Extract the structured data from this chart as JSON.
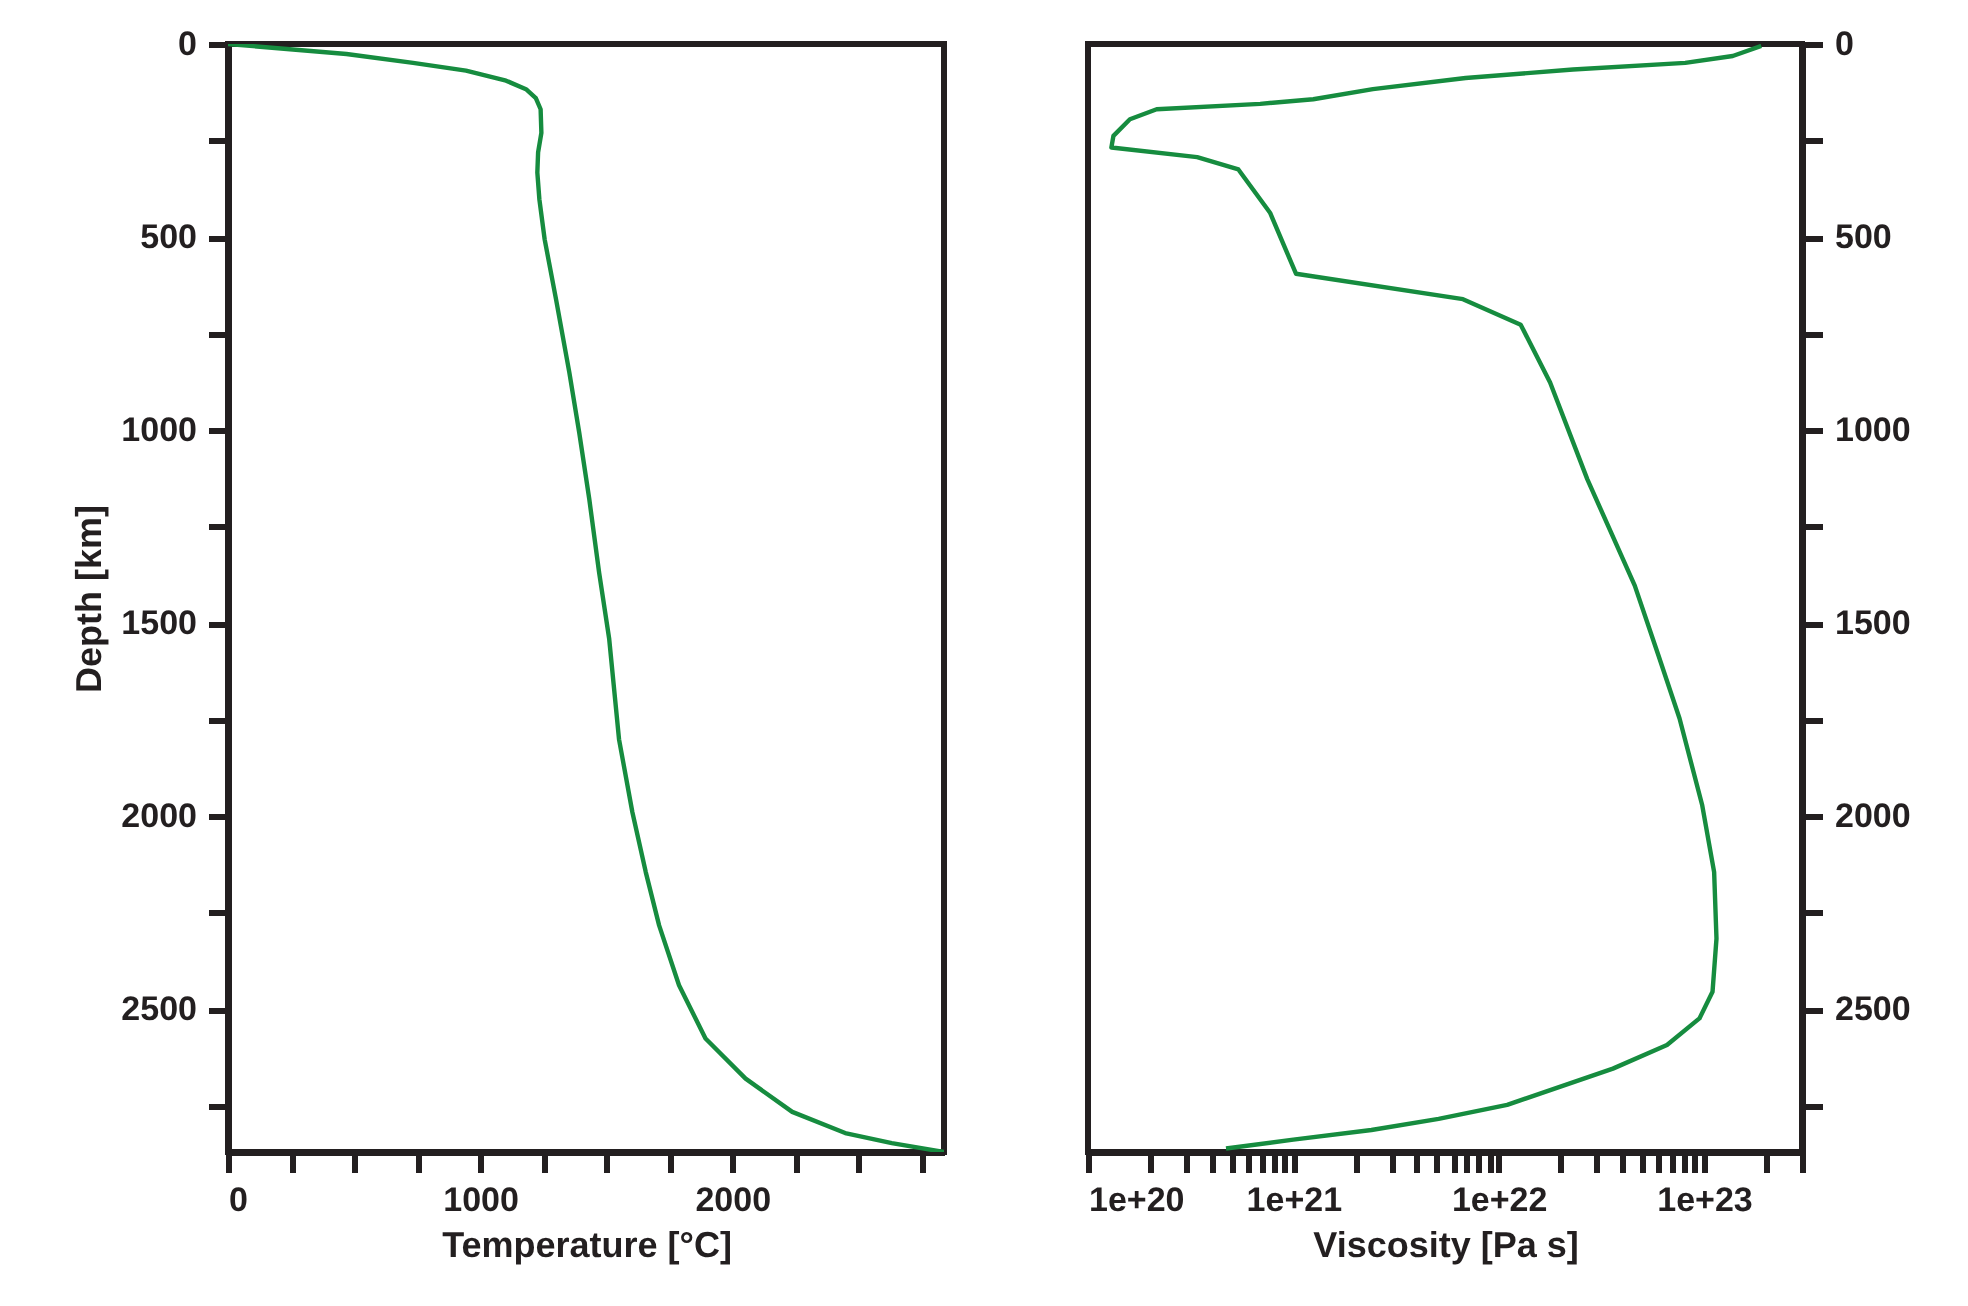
{
  "chart_data": [
    {
      "type": "line",
      "xlabel": "Temperature [°C]",
      "ylabel": "Depth [km]",
      "xlim": [
        0,
        2840
      ],
      "ylim": [
        2870,
        0
      ],
      "xticks": [
        0,
        {
          "value": 250,
          "label": null
        },
        {
          "value": 500,
          "label": null
        },
        {
          "value": 750,
          "label": null
        },
        1000,
        {
          "value": 1250,
          "label": null
        },
        {
          "value": 1500,
          "label": null
        },
        {
          "value": 1750,
          "label": null
        },
        2000,
        {
          "value": 2250,
          "label": null
        },
        {
          "value": 2500,
          "label": null
        },
        {
          "value": 2750,
          "label": null
        }
      ],
      "yticks": [
        0,
        {
          "value": 250,
          "label": null
        },
        500,
        {
          "value": 750,
          "label": null
        },
        1000,
        {
          "value": 1250,
          "label": null
        },
        1500,
        {
          "value": 1750,
          "label": null
        },
        2000,
        {
          "value": 2250,
          "label": null
        },
        2500,
        {
          "value": 2750,
          "label": null
        }
      ],
      "grid": false,
      "marker": "none",
      "line_style": "solid",
      "series": [
        {
          "color": "#168c3f",
          "x": [
            0,
            470,
            734,
            944,
            1103,
            1182,
            1221,
            1240,
            1243,
            1230,
            1227,
            1235,
            1256,
            1301,
            1354,
            1393,
            1433,
            1472,
            1512,
            1551,
            1604,
            1657,
            1710,
            1789,
            1894,
            2053,
            2238,
            2448,
            2633,
            2840
          ],
          "values": [
            0,
            26,
            49,
            69,
            95,
            117,
            140,
            169,
            230,
            281,
            333,
            402,
            506,
            661,
            851,
            1006,
            1179,
            1369,
            1541,
            1801,
            1990,
            2145,
            2283,
            2438,
            2576,
            2680,
            2766,
            2821,
            2847,
            2870
          ]
        }
      ]
    },
    {
      "type": "line",
      "xlabel": "Viscosity [Pa s]",
      "xlim": [
        1e+20,
        3e+23
      ],
      "ylim": [
        2870,
        0
      ],
      "log": "x",
      "xticks": [
        {
          "value": 1e+20,
          "label": "1e+20"
        },
        {
          "value": 2e+20,
          "label": null
        },
        {
          "value": 3e+20,
          "label": null
        },
        {
          "value": 4e+20,
          "label": null
        },
        {
          "value": 5e+20,
          "label": null
        },
        {
          "value": 6e+20,
          "label": null
        },
        {
          "value": 7e+20,
          "label": null
        },
        {
          "value": 8e+20,
          "label": null
        },
        {
          "value": 9e+20,
          "label": null
        },
        {
          "value": 1e+21,
          "label": "1e+21"
        },
        {
          "value": 2e+21,
          "label": null
        },
        {
          "value": 3e+21,
          "label": null
        },
        {
          "value": 4e+21,
          "label": null
        },
        {
          "value": 5e+21,
          "label": null
        },
        {
          "value": 6e+21,
          "label": null
        },
        {
          "value": 7e+21,
          "label": null
        },
        {
          "value": 8e+21,
          "label": null
        },
        {
          "value": 9e+21,
          "label": null
        },
        {
          "value": 1e+22,
          "label": "1e+22"
        },
        {
          "value": 2e+22,
          "label": null
        },
        {
          "value": 3e+22,
          "label": null
        },
        {
          "value": 4e+22,
          "label": null
        },
        {
          "value": 5e+22,
          "label": null
        },
        {
          "value": 6e+22,
          "label": null
        },
        {
          "value": 7e+22,
          "label": null
        },
        {
          "value": 8e+22,
          "label": null
        },
        {
          "value": 9e+22,
          "label": null
        },
        {
          "value": 1e+23,
          "label": "1e+23"
        },
        {
          "value": 2e+23,
          "label": null
        },
        {
          "value": 3e+23,
          "label": null
        }
      ],
      "yticks": [
        0,
        {
          "value": 250,
          "label": null
        },
        500,
        {
          "value": 750,
          "label": null
        },
        1000,
        {
          "value": 1250,
          "label": null
        },
        1500,
        {
          "value": 1750,
          "label": null
        },
        2000,
        {
          "value": 2250,
          "label": null
        },
        2500,
        {
          "value": 2750,
          "label": null
        }
      ],
      "grid": false,
      "marker": "none",
      "line_style": "solid",
      "series": [
        {
          "color": "#168c3f",
          "x": [
            1.9e+23,
            1.38e+23,
            8.1e+22,
            2.3e+22,
            6.9e+21,
            2.44e+21,
            1.25e+21,
            6.9e+20,
            2.16e+20,
            1.6e+20,
            1.33e+20,
            1.3e+20,
            3.4e+20,
            5.4e+20,
            7.7e+20,
            1.03e+21,
            6.7e+21,
            1.28e+22,
            1.78e+22,
            2.7e+22,
            4.6e+22,
            6e+22,
            7.6e+22,
            9.8e+22,
            1.12e+23,
            1.15e+23,
            1.1e+23,
            9.5e+22,
            6.6e+22,
            3.6e+22,
            1.1e+22,
            5.1e+21,
            2.4e+21,
            1e+21,
            4.7e+20
          ],
          "values": [
            5,
            31,
            49,
            66,
            88,
            117,
            143,
            155,
            169,
            195,
            238,
            268,
            293,
            325,
            437,
            595,
            661,
            727,
            877,
            1127,
            1403,
            1584,
            1747,
            1972,
            2145,
            2317,
            2455,
            2524,
            2593,
            2654,
            2748,
            2784,
            2813,
            2838,
            2861
          ]
        }
      ]
    }
  ]
}
